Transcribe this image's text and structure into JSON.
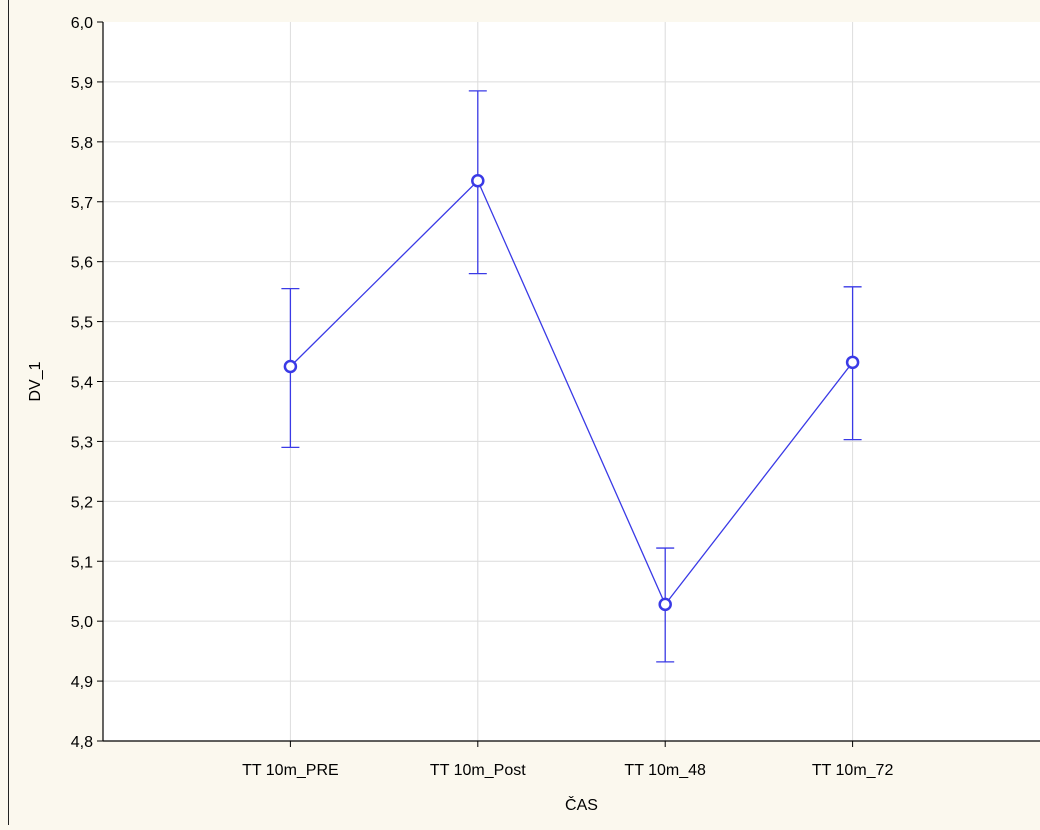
{
  "chart_data": {
    "type": "line",
    "title": "",
    "xlabel": "ČAS",
    "ylabel": "DV_1",
    "categories": [
      "TT 10m_PRE",
      "TT 10m_Post",
      "TT 10m_48",
      "TT 10m_72"
    ],
    "series": [
      {
        "values": [
          5.425,
          5.735,
          5.028,
          5.432
        ],
        "error_low": [
          5.29,
          5.58,
          4.932,
          5.303
        ],
        "error_high": [
          5.555,
          5.885,
          5.122,
          5.558
        ]
      }
    ],
    "ylim": [
      4.8,
      6.0
    ],
    "yticks": [
      "4,8",
      "4,9",
      "5,0",
      "5,1",
      "5,2",
      "5,3",
      "5,4",
      "5,5",
      "5,6",
      "5,7",
      "5,8",
      "5,9",
      "6,0"
    ],
    "grid": true,
    "legend": "none",
    "colors": {
      "series": "#3a3ae6",
      "grid": "#dcdcdc",
      "axis": "#000000",
      "plot_bg": "#ffffff",
      "page_bg": "#fbf8ee"
    }
  }
}
